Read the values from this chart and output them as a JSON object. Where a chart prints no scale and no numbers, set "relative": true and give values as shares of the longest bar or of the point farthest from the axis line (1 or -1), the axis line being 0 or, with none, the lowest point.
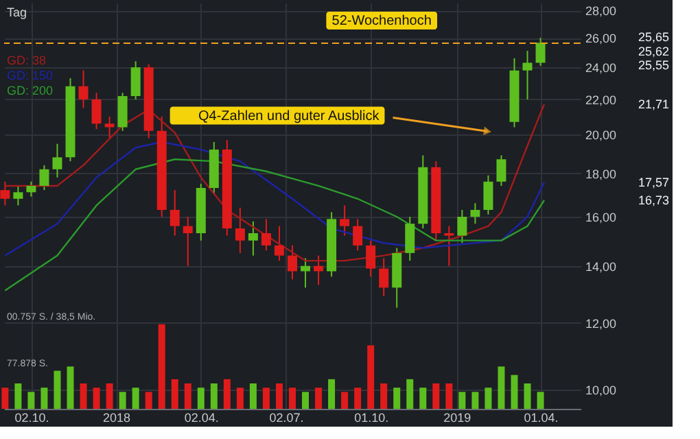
{
  "chart_data": [
    {
      "type": "candlestick",
      "subtitle": "Tag",
      "x": [
        "2017-09-04",
        "2017-09-18",
        "2017-10-02",
        "2017-10-16",
        "2017-10-30",
        "2017-11-13",
        "2017-11-27",
        "2017-12-11",
        "2017-12-25",
        "2018-01-08",
        "2018-01-22",
        "2018-02-05",
        "2018-02-19",
        "2018-03-05",
        "2018-03-19",
        "2018-04-02",
        "2018-04-16",
        "2018-04-30",
        "2018-05-14",
        "2018-05-28",
        "2018-06-11",
        "2018-06-25",
        "2018-07-09",
        "2018-07-23",
        "2018-08-06",
        "2018-08-20",
        "2018-09-03",
        "2018-09-17",
        "2018-10-01",
        "2018-10-15",
        "2018-10-29",
        "2018-11-12",
        "2018-11-26",
        "2018-12-10",
        "2018-12-24",
        "2019-01-07",
        "2019-01-21",
        "2019-02-04",
        "2019-02-18",
        "2019-03-04",
        "2019-03-18",
        "2019-04-01"
      ],
      "ohlc": [
        [
          17.2,
          17.6,
          16.5,
          16.8
        ],
        [
          16.8,
          17.4,
          16.5,
          17.1
        ],
        [
          17.1,
          17.6,
          16.9,
          17.4
        ],
        [
          17.4,
          18.4,
          17.2,
          18.2
        ],
        [
          18.2,
          19.5,
          17.8,
          18.8
        ],
        [
          18.8,
          23.3,
          18.6,
          22.8
        ],
        [
          22.8,
          23.8,
          21.5,
          22.0
        ],
        [
          22.0,
          22.4,
          20.3,
          20.6
        ],
        [
          20.6,
          21.0,
          19.8,
          20.4
        ],
        [
          20.4,
          22.4,
          20.2,
          22.2
        ],
        [
          22.2,
          24.4,
          22.0,
          24.0
        ],
        [
          24.0,
          24.2,
          19.8,
          20.2
        ],
        [
          20.2,
          21.0,
          16.0,
          16.3
        ],
        [
          16.3,
          17.2,
          15.2,
          15.6
        ],
        [
          15.6,
          16.0,
          14.0,
          15.3
        ],
        [
          15.3,
          17.5,
          15.0,
          17.3
        ],
        [
          17.3,
          19.6,
          17.0,
          19.2
        ],
        [
          19.2,
          19.7,
          15.2,
          15.5
        ],
        [
          15.5,
          16.4,
          14.5,
          15.0
        ],
        [
          15.0,
          15.8,
          14.4,
          15.3
        ],
        [
          15.3,
          15.9,
          14.6,
          14.8
        ],
        [
          14.8,
          15.6,
          14.2,
          14.4
        ],
        [
          14.4,
          14.8,
          13.5,
          13.8
        ],
        [
          13.8,
          14.3,
          13.2,
          14.0
        ],
        [
          14.0,
          14.4,
          13.3,
          13.8
        ],
        [
          13.8,
          16.2,
          13.6,
          15.9
        ],
        [
          15.9,
          16.5,
          15.2,
          15.6
        ],
        [
          15.6,
          15.9,
          14.6,
          14.8
        ],
        [
          14.8,
          15.0,
          13.6,
          13.9
        ],
        [
          13.9,
          14.3,
          12.9,
          13.2
        ],
        [
          13.2,
          14.7,
          12.5,
          14.5
        ],
        [
          14.5,
          16.0,
          14.2,
          15.7
        ],
        [
          15.7,
          18.9,
          15.5,
          18.3
        ],
        [
          18.3,
          18.6,
          15.0,
          15.3
        ],
        [
          15.3,
          15.6,
          14.0,
          15.2
        ],
        [
          15.2,
          16.3,
          14.9,
          16.0
        ],
        [
          16.0,
          16.6,
          15.7,
          16.3
        ],
        [
          16.3,
          17.9,
          16.1,
          17.6
        ],
        [
          17.6,
          18.9,
          17.4,
          18.7
        ],
        [
          20.7,
          24.6,
          20.4,
          23.8
        ],
        [
          23.8,
          25.1,
          22.0,
          24.3
        ],
        [
          24.3,
          26.0,
          24.1,
          25.66
        ]
      ],
      "colors": [
        "#e01b1b",
        "#5cbf1f",
        "#5cbf1f",
        "#5cbf1f",
        "#5cbf1f",
        "#5cbf1f",
        "#e01b1b",
        "#e01b1b",
        "#e01b1b",
        "#5cbf1f",
        "#5cbf1f",
        "#e01b1b",
        "#e01b1b",
        "#e01b1b",
        "#e01b1b",
        "#5cbf1f",
        "#5cbf1f",
        "#e01b1b",
        "#e01b1b",
        "#5cbf1f",
        "#e01b1b",
        "#e01b1b",
        "#e01b1b",
        "#5cbf1f",
        "#e01b1b",
        "#5cbf1f",
        "#e01b1b",
        "#e01b1b",
        "#e01b1b",
        "#e01b1b",
        "#5cbf1f",
        "#5cbf1f",
        "#5cbf1f",
        "#e01b1b",
        "#e01b1b",
        "#5cbf1f",
        "#5cbf1f",
        "#5cbf1f",
        "#5cbf1f",
        "#5cbf1f",
        "#5cbf1f",
        "#5cbf1f"
      ],
      "series": [
        {
          "name": "GD: 38",
          "type": "line",
          "color": "#a51c1c",
          "x": [
            "2017-09-04",
            "2017-10-30",
            "2017-11-27",
            "2018-01-08",
            "2018-02-05",
            "2018-03-05",
            "2018-04-02",
            "2018-04-30",
            "2018-06-11",
            "2018-07-23",
            "2018-09-03",
            "2018-10-15",
            "2018-11-26",
            "2019-01-07",
            "2019-02-04",
            "2019-02-18",
            "2019-03-18",
            "2019-04-05"
          ],
          "values": [
            17.4,
            17.4,
            18.4,
            20.5,
            21.4,
            20.1,
            17.8,
            16.3,
            15.2,
            14.2,
            14.2,
            14.4,
            14.7,
            15.2,
            15.6,
            16.2,
            19.4,
            21.71
          ]
        },
        {
          "name": "GD: 150",
          "type": "line",
          "color": "#1c24a8",
          "x": [
            "2017-09-04",
            "2017-10-30",
            "2017-12-11",
            "2018-01-22",
            "2018-02-19",
            "2018-04-02",
            "2018-05-14",
            "2018-07-09",
            "2018-08-20",
            "2018-10-15",
            "2018-11-26",
            "2019-02-18",
            "2019-03-18",
            "2019-04-05"
          ],
          "values": [
            14.4,
            15.7,
            17.8,
            19.3,
            19.6,
            19.2,
            18.6,
            16.8,
            15.5,
            14.9,
            14.7,
            15.0,
            16.0,
            17.57
          ]
        },
        {
          "name": "GD: 200",
          "type": "line",
          "color": "#2c9c2c",
          "x": [
            "2017-09-04",
            "2017-10-30",
            "2017-12-11",
            "2018-01-22",
            "2018-03-05",
            "2018-04-16",
            "2018-06-11",
            "2018-08-06",
            "2018-09-17",
            "2018-10-29",
            "2018-12-10",
            "2019-02-18",
            "2019-03-18",
            "2019-04-05"
          ],
          "values": [
            13.1,
            14.4,
            16.5,
            18.2,
            18.7,
            18.6,
            18.1,
            17.4,
            16.8,
            16.0,
            15.0,
            15.0,
            15.6,
            16.73
          ]
        }
      ],
      "xlim": [
        "2017-09-03",
        "2019-05-14"
      ],
      "xticks": [
        {
          "value": "2017-10-02",
          "label": "02.10."
        },
        {
          "value": "2018-01-01",
          "label": "2018"
        },
        {
          "value": "2018-04-02",
          "label": "02.04."
        },
        {
          "value": "2018-07-02",
          "label": "02.07."
        },
        {
          "value": "2018-10-01",
          "label": "01.10."
        },
        {
          "value": "2019-01-01",
          "label": "2019"
        },
        {
          "value": "2019-04-01",
          "label": "01.04."
        }
      ],
      "ylim": [
        9.5,
        28.6
      ],
      "log": true,
      "yticks": [
        {
          "value": 10,
          "label": "10,00"
        },
        {
          "value": 12,
          "label": "12,00"
        },
        {
          "value": 14,
          "label": "14,00"
        },
        {
          "value": 16,
          "label": "16,00"
        },
        {
          "value": 18,
          "label": "18,00"
        },
        {
          "value": 20,
          "label": "20,00"
        },
        {
          "value": 22,
          "label": "22,00"
        },
        {
          "value": 24,
          "label": "24,00"
        },
        {
          "value": 26,
          "label": "26,00"
        },
        {
          "value": 28,
          "label": "28,00"
        }
      ],
      "grid": true,
      "legend": "top left",
      "ref_lines": [
        {
          "axis": "y",
          "value": 25.62,
          "label": "52-Wochenhoch",
          "color": "#f0a020",
          "line_style": "dashed"
        }
      ],
      "annotations": [
        "Q4-Zahlen und guter Ausblick",
        "25,65",
        "25,62",
        "25,55",
        "21,71",
        "17,57",
        "16,73"
      ]
    },
    {
      "type": "bar",
      "relative": true,
      "xlim": [
        "2017-09-03",
        "2019-05-14"
      ],
      "x": [
        "2017-09-04",
        "2017-09-18",
        "2017-10-02",
        "2017-10-16",
        "2017-10-30",
        "2017-11-13",
        "2017-11-27",
        "2017-12-11",
        "2017-12-25",
        "2018-01-08",
        "2018-01-22",
        "2018-02-05",
        "2018-02-19",
        "2018-03-05",
        "2018-03-19",
        "2018-04-02",
        "2018-04-16",
        "2018-04-30",
        "2018-05-14",
        "2018-05-28",
        "2018-06-11",
        "2018-06-25",
        "2018-07-09",
        "2018-07-23",
        "2018-08-06",
        "2018-08-20",
        "2018-09-03",
        "2018-09-17",
        "2018-10-01",
        "2018-10-15",
        "2018-10-29",
        "2018-11-12",
        "2018-11-26",
        "2018-12-10",
        "2018-12-24",
        "2019-01-07",
        "2019-01-21",
        "2019-02-04",
        "2019-02-18",
        "2019-03-04",
        "2019-03-18",
        "2019-04-01"
      ],
      "values": [
        0.25,
        0.3,
        0.2,
        0.25,
        0.45,
        0.5,
        0.3,
        0.25,
        0.3,
        0.2,
        0.25,
        0.2,
        1.0,
        0.35,
        0.3,
        0.25,
        0.3,
        0.35,
        0.25,
        0.3,
        0.25,
        0.3,
        0.25,
        0.2,
        0.25,
        0.35,
        0.2,
        0.25,
        0.75,
        0.3,
        0.25,
        0.35,
        0.25,
        0.3,
        0.3,
        0.2,
        0.2,
        0.25,
        0.5,
        0.4,
        0.3,
        0.2
      ],
      "colors": [
        "#e01b1b",
        "#5cbf1f",
        "#5cbf1f",
        "#5cbf1f",
        "#5cbf1f",
        "#5cbf1f",
        "#e01b1b",
        "#e01b1b",
        "#e01b1b",
        "#5cbf1f",
        "#5cbf1f",
        "#e01b1b",
        "#e01b1b",
        "#e01b1b",
        "#e01b1b",
        "#5cbf1f",
        "#5cbf1f",
        "#e01b1b",
        "#e01b1b",
        "#5cbf1f",
        "#e01b1b",
        "#e01b1b",
        "#e01b1b",
        "#5cbf1f",
        "#e01b1b",
        "#5cbf1f",
        "#e01b1b",
        "#e01b1b",
        "#e01b1b",
        "#e01b1b",
        "#5cbf1f",
        "#5cbf1f",
        "#5cbf1f",
        "#e01b1b",
        "#e01b1b",
        "#5cbf1f",
        "#5cbf1f",
        "#5cbf1f",
        "#5cbf1f",
        "#5cbf1f",
        "#5cbf1f",
        "#5cbf1f"
      ],
      "annotations": [
        "00.757 S. / 38,5 Mio.",
        "77.878 S."
      ]
    }
  ]
}
